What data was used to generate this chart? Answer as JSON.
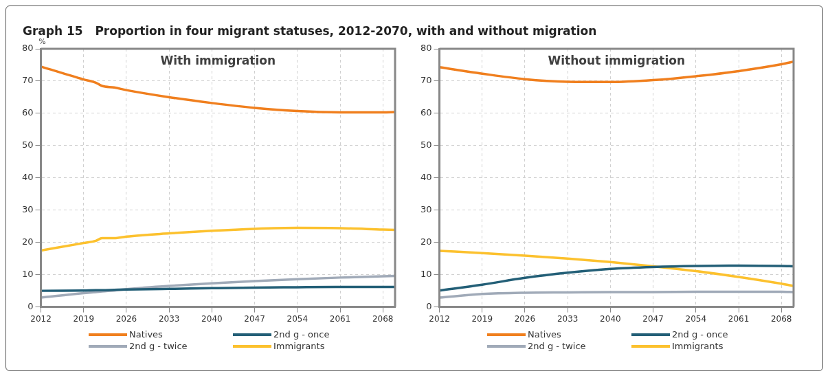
{
  "chart_data": [
    {
      "type": "line",
      "title": "Graph 15   Proportion in four migrant statuses, 2012-2070, with and without migration",
      "subtitle": "With immigration",
      "ylabel": "%",
      "x": [
        2012,
        2019,
        2021,
        2022,
        2024,
        2026,
        2033,
        2040,
        2047,
        2054,
        2061,
        2068,
        2070
      ],
      "xlim": [
        2012,
        2070
      ],
      "xticks": [
        2012,
        2019,
        2026,
        2033,
        2040,
        2047,
        2054,
        2061,
        2068
      ],
      "ylim": [
        0,
        80
      ],
      "yticks": [
        0,
        10,
        20,
        30,
        40,
        50,
        60,
        70,
        80
      ],
      "grid": true,
      "legend": "bottom",
      "marker": "none",
      "line_style": "solid",
      "series": [
        {
          "name": "Natives",
          "color": "#f07f1e",
          "values": [
            74.5,
            70.5,
            69.5,
            68.5,
            68.0,
            67.2,
            65.0,
            63.2,
            61.7,
            60.7,
            60.3,
            60.3,
            60.4
          ]
        },
        {
          "name": "2nd g - once",
          "color": "#235f77",
          "values": [
            5.0,
            5.1,
            5.2,
            5.2,
            5.3,
            5.4,
            5.6,
            5.8,
            6.0,
            6.1,
            6.2,
            6.2,
            6.2
          ]
        },
        {
          "name": "2nd g - twice",
          "color": "#a0aab8",
          "values": [
            2.9,
            4.3,
            4.6,
            4.8,
            5.1,
            5.5,
            6.5,
            7.3,
            8.0,
            8.6,
            9.1,
            9.5,
            9.6
          ]
        },
        {
          "name": "Immigrants",
          "color": "#fcc12e",
          "values": [
            17.5,
            19.8,
            20.5,
            21.3,
            21.3,
            21.8,
            22.8,
            23.6,
            24.2,
            24.5,
            24.4,
            24.0,
            23.9
          ]
        }
      ]
    },
    {
      "type": "line",
      "subtitle": "Without immigration",
      "x": [
        2012,
        2019,
        2026,
        2033,
        2040,
        2047,
        2054,
        2061,
        2068,
        2070
      ],
      "xlim": [
        2012,
        2070
      ],
      "xticks": [
        2012,
        2019,
        2026,
        2033,
        2040,
        2047,
        2054,
        2061,
        2068
      ],
      "ylim": [
        0,
        80
      ],
      "yticks": [
        0,
        10,
        20,
        30,
        40,
        50,
        60,
        70,
        80
      ],
      "grid": true,
      "legend": "bottom",
      "marker": "none",
      "line_style": "solid",
      "series": [
        {
          "name": "Natives",
          "color": "#f07f1e",
          "values": [
            74.3,
            72.3,
            70.6,
            69.8,
            69.7,
            70.3,
            71.5,
            73.1,
            75.2,
            76.0
          ]
        },
        {
          "name": "2nd g - once",
          "color": "#235f77",
          "values": [
            5.1,
            6.9,
            9.0,
            10.6,
            11.8,
            12.4,
            12.7,
            12.8,
            12.7,
            12.6
          ]
        },
        {
          "name": "2nd g - twice",
          "color": "#a0aab8",
          "values": [
            2.9,
            4.0,
            4.4,
            4.5,
            4.6,
            4.6,
            4.7,
            4.7,
            4.7,
            4.6
          ]
        },
        {
          "name": "Immigrants",
          "color": "#fcc12e",
          "values": [
            17.4,
            16.7,
            15.9,
            15.0,
            13.9,
            12.6,
            11.1,
            9.3,
            7.2,
            6.5
          ]
        }
      ]
    }
  ]
}
